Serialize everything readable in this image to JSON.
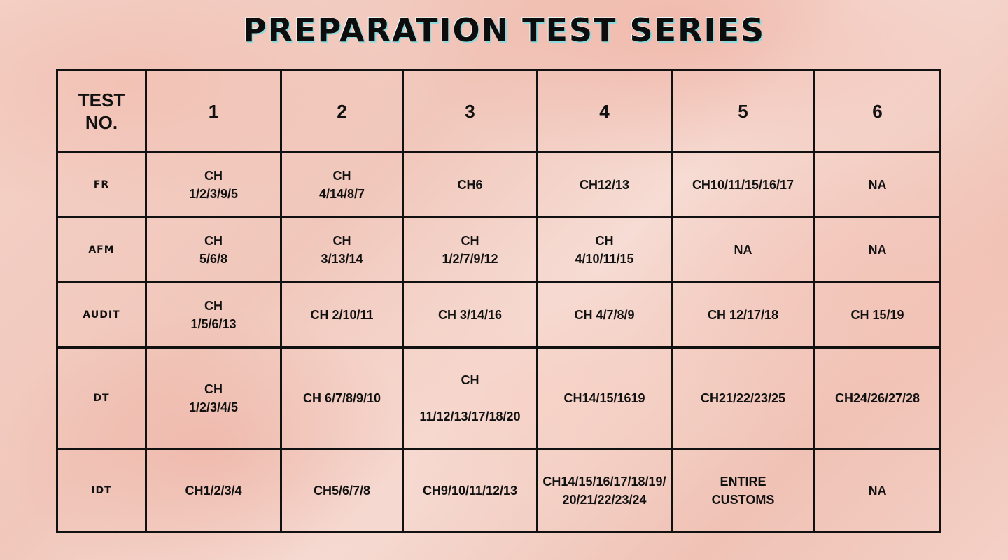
{
  "title": "PREPARATION TEST SERIES",
  "table": {
    "corner": "TEST\nNO.",
    "columns": [
      "1",
      "2",
      "3",
      "4",
      "5",
      "6"
    ],
    "rows": [
      {
        "subject": "FR",
        "cells": [
          "CH\n1/2/3/9/5",
          "CH\n4/14/8/7",
          "CH6",
          "CH12/13",
          "CH10/11/15/16/17",
          "NA"
        ]
      },
      {
        "subject": "AFM",
        "cells": [
          "CH\n5/6/8",
          "CH\n3/13/14",
          "CH\n1/2/7/9/12",
          "CH\n4/10/11/15",
          "NA",
          "NA"
        ]
      },
      {
        "subject": "AUDIT",
        "cells": [
          "CH\n1/5/6/13",
          "CH 2/10/11",
          "CH 3/14/16",
          "CH 4/7/8/9",
          "CH 12/17/18",
          "CH 15/19"
        ]
      },
      {
        "subject": "DT",
        "cells": [
          "CH\n1/2/3/4/5",
          "CH 6/7/8/9/10",
          "CH\n\n11/12/13/17/18/20",
          "CH14/15/1619",
          "CH21/22/23/25",
          "CH24/26/27/28"
        ]
      },
      {
        "subject": "IDT",
        "cells": [
          "CH1/2/3/4",
          "CH5/6/7/8",
          "CH9/10/11/12/13",
          "CH14/15/16/17/18/19/20/21/22/23/24",
          "ENTIRE\nCUSTOMS",
          "NA"
        ]
      }
    ]
  }
}
